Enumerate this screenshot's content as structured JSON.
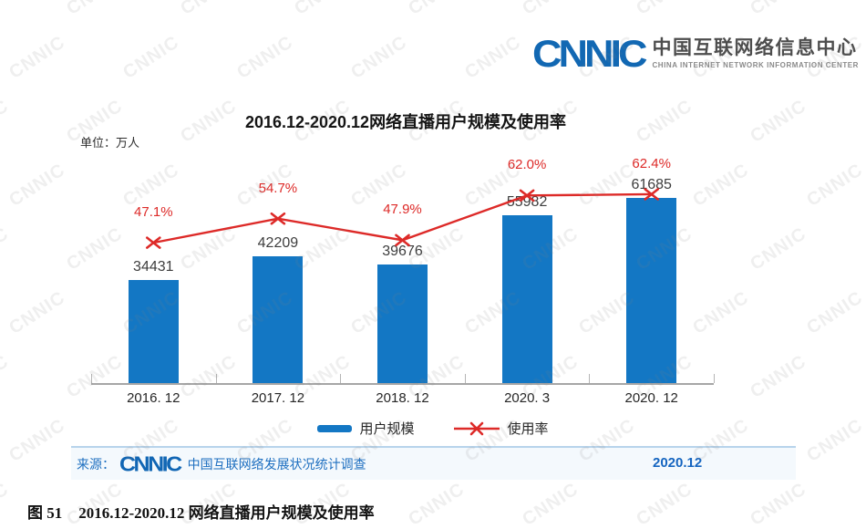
{
  "header": {
    "logo_text": "CNNIC",
    "logo_cn": "中国互联网络信息中心",
    "logo_en": "CHINA INTERNET NETWORK INFORMATION CENTER"
  },
  "chart_data": {
    "type": "combo",
    "title": "2016.12-2020.12网络直播用户规模及使用率",
    "unit_label": "单位：万人",
    "categories": [
      "2016. 12",
      "2017. 12",
      "2018. 12",
      "2020. 3",
      "2020. 12"
    ],
    "series": [
      {
        "name": "用户规模",
        "type": "bar",
        "color": "#1377c4",
        "values": [
          34431,
          42209,
          39676,
          55982,
          61685
        ]
      },
      {
        "name": "使用率",
        "type": "line",
        "color": "#dd2a28",
        "marker": "x",
        "values": [
          47.1,
          54.7,
          47.9,
          62.0,
          62.4
        ],
        "labels": [
          "47.1%",
          "54.7%",
          "47.9%",
          "62.0%",
          "62.4%"
        ]
      }
    ],
    "ylim": [
      0,
      65000
    ],
    "grid": false,
    "legend_position": "bottom"
  },
  "source": {
    "prefix": "来源：",
    "logo_text": "CNNIC",
    "text": "中国互联网络发展状况统计调查",
    "date": "2020.12"
  },
  "caption": {
    "label": "图 51",
    "text": "2016.12-2020.12 网络直播用户规模及使用率"
  },
  "watermark_text": "CNNIC",
  "colors": {
    "bar_blue": "#1377c4",
    "line_red": "#dd2a28",
    "logo_blue": "#1268b3",
    "source_blue": "#1e6fc0",
    "axis_gray": "#a6a6a6"
  }
}
